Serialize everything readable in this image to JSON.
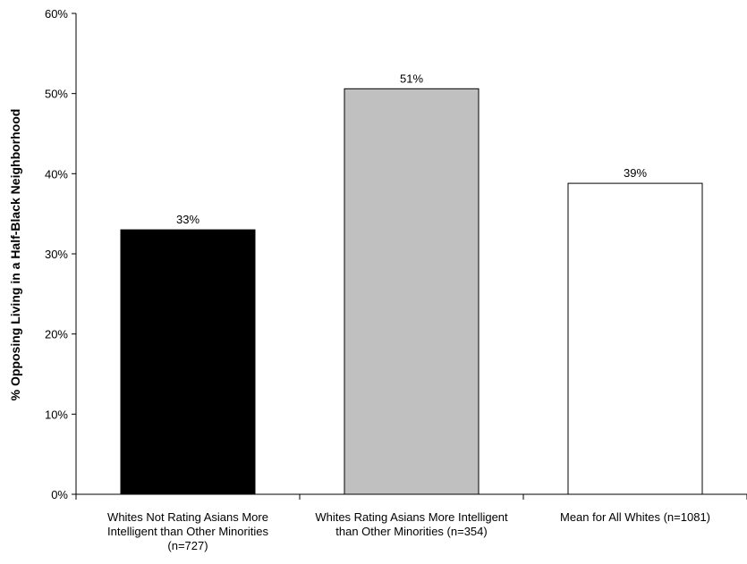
{
  "chart_data": {
    "type": "bar",
    "title": "",
    "xlabel": "",
    "ylabel": "% Opposing Living in a Half-Black Neighborhood",
    "ylim": [
      0,
      60
    ],
    "y_ticks": [
      "0%",
      "10%",
      "20%",
      "30%",
      "40%",
      "50%",
      "60%"
    ],
    "y_tick_values": [
      0,
      10,
      20,
      30,
      40,
      50,
      60
    ],
    "grid": false,
    "legend": "none",
    "categories": [
      [
        "Whites Not Rating Asians More",
        "Intelligent than Other Minorities",
        "(n=727)"
      ],
      [
        "Whites Rating Asians More Intelligent",
        "than Other Minorities (n=354)"
      ],
      [
        "Mean for All Whites (n=1081)"
      ]
    ],
    "values": [
      33,
      50.6,
      38.8
    ],
    "data_labels": [
      "33%",
      "51%",
      "39%"
    ],
    "bar_colors": [
      "#000000",
      "#c0c0c0",
      "#ffffff"
    ]
  }
}
